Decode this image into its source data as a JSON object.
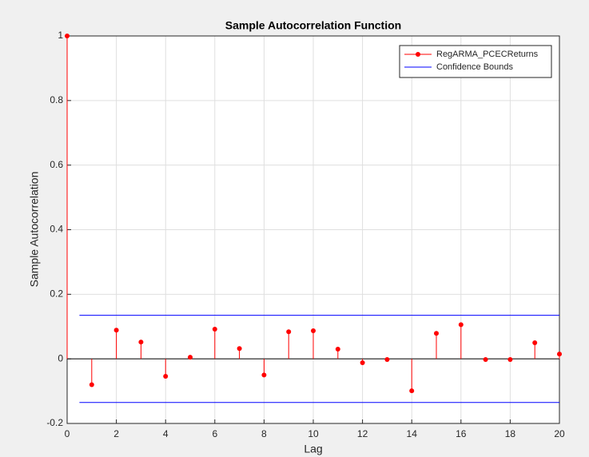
{
  "chart_data": {
    "type": "stem",
    "title": "Sample Autocorrelation Function",
    "x_label": "Lag",
    "y_label": "Sample Autocorrelation",
    "x": [
      0,
      1,
      2,
      3,
      4,
      5,
      6,
      7,
      8,
      9,
      10,
      11,
      12,
      13,
      14,
      15,
      16,
      17,
      18,
      19,
      20
    ],
    "series": [
      {
        "name": "RegARMA_PCECReturns",
        "color": "#ff0000",
        "values": [
          1,
          -0.08,
          0.089,
          0.052,
          -0.054,
          0.005,
          0.092,
          0.032,
          -0.05,
          0.084,
          0.087,
          0.03,
          -0.012,
          -0.002,
          -0.099,
          0.079,
          0.106,
          -0.002,
          -0.002,
          0.05,
          0.015
        ]
      }
    ],
    "confidence_bounds": {
      "name": "Confidence Bounds",
      "color": "#0000ff",
      "x": [
        0.5,
        20
      ],
      "values": [
        0.135,
        -0.135
      ]
    },
    "xlim": [
      0,
      20
    ],
    "xticks": [
      0,
      2,
      4,
      6,
      8,
      10,
      12,
      14,
      16,
      18,
      20
    ],
    "ylim": [
      -0.2,
      1
    ],
    "yticks": [
      -0.2,
      0,
      0.2,
      0.4,
      0.6,
      0.8,
      1
    ],
    "grid": true,
    "legend": "northeast"
  }
}
